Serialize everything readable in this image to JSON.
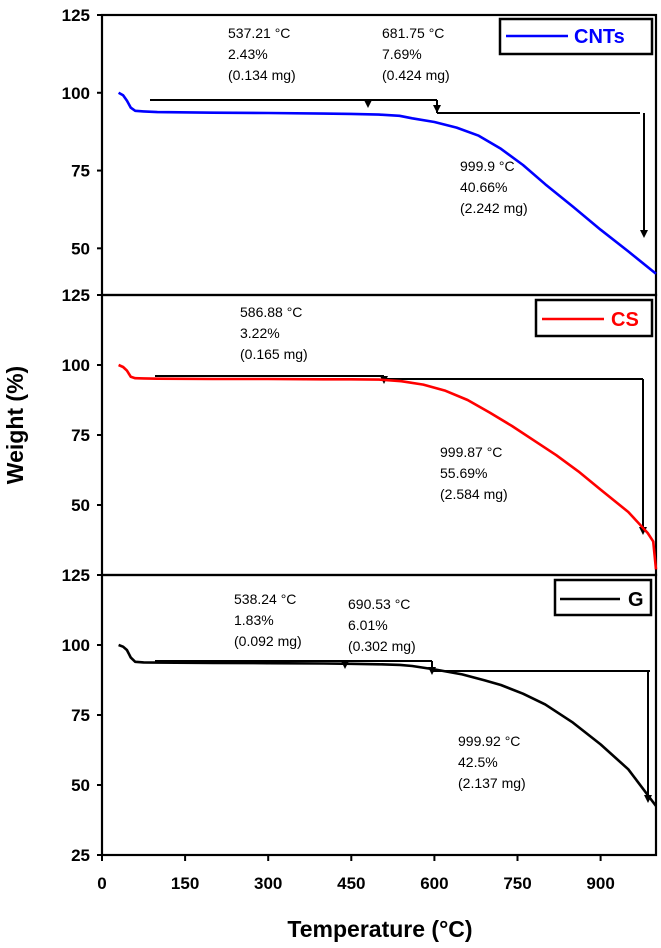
{
  "chart_data": {
    "type": "line",
    "xlabel": "Temperature (°C)",
    "ylabel": "Weight (%)",
    "xlim": [
      0,
      1000
    ],
    "xticks": [
      "0",
      "150",
      "300",
      "450",
      "600",
      "750",
      "900"
    ],
    "xtick_values": [
      0,
      150,
      300,
      450,
      600,
      750,
      900
    ],
    "panels": [
      {
        "series_name": "CNTs",
        "color": "#0000ff",
        "ylim": [
          35,
          125
        ],
        "yticks": [
          "125",
          "100",
          "75",
          "50"
        ],
        "ytick_values": [
          125,
          100,
          75,
          50
        ],
        "x": [
          30,
          38,
          45,
          52,
          60,
          75,
          100,
          200,
          300,
          400,
          450,
          500,
          537,
          560,
          600,
          640,
          680,
          720,
          760,
          800,
          850,
          900,
          950,
          1000
        ],
        "y": [
          100,
          99.2,
          97.5,
          95.2,
          94.2,
          94,
          93.8,
          93.6,
          93.5,
          93.3,
          93.2,
          93,
          92.6,
          91.8,
          90.6,
          88.8,
          86.2,
          82,
          76.8,
          70.6,
          63.4,
          56,
          49,
          41.8
        ],
        "annotations": [
          {
            "lines": [
              "537.21 °C",
              "2.43%",
              "(0.134 mg)"
            ],
            "x": 537.21
          },
          {
            "lines": [
              "681.75 °C",
              "7.69%",
              "(0.424 mg)"
            ],
            "x": 681.75
          },
          {
            "lines": [
              "999.9 °C",
              "40.66%",
              "(2.242 mg)"
            ],
            "x": 999.9
          }
        ]
      },
      {
        "series_name": "CS",
        "color": "#ff0000",
        "ylim": [
          25,
          125
        ],
        "yticks": [
          "125",
          "100",
          "75",
          "50"
        ],
        "ytick_values": [
          125,
          100,
          75,
          50
        ],
        "x": [
          30,
          38,
          45,
          52,
          60,
          75,
          100,
          200,
          300,
          400,
          450,
          500,
          540,
          580,
          620,
          660,
          700,
          740,
          780,
          820,
          860,
          900,
          950,
          985,
          995,
          1000
        ],
        "y": [
          100,
          99.3,
          98,
          95.8,
          95.3,
          95.2,
          95.1,
          95,
          95,
          94.9,
          94.9,
          94.8,
          94.2,
          93,
          90.8,
          87.5,
          83,
          78.2,
          73,
          67.8,
          62,
          55.5,
          47.5,
          40,
          37,
          27
        ],
        "annotations": [
          {
            "lines": [
              "586.88 °C",
              "3.22%",
              "(0.165 mg)"
            ],
            "x": 586.88
          },
          {
            "lines": [
              "999.87 °C",
              "55.69%",
              "(2.584 mg)"
            ],
            "x": 999.87
          }
        ]
      },
      {
        "series_name": "G",
        "color": "#000000",
        "ylim": [
          25,
          125
        ],
        "yticks": [
          "125",
          "100",
          "75",
          "50",
          "25"
        ],
        "ytick_values": [
          125,
          100,
          75,
          50,
          25
        ],
        "x": [
          30,
          38,
          45,
          52,
          60,
          75,
          100,
          200,
          300,
          400,
          450,
          500,
          538,
          560,
          600,
          650,
          690,
          720,
          760,
          800,
          850,
          900,
          950,
          1000
        ],
        "y": [
          100,
          99.4,
          98.2,
          95.5,
          94,
          93.8,
          93.7,
          93.6,
          93.5,
          93.4,
          93.3,
          93.1,
          92.9,
          92.5,
          91.3,
          89.5,
          87.4,
          85.7,
          82.6,
          78.8,
          72.3,
          64.5,
          55.6,
          42.5
        ],
        "annotations": [
          {
            "lines": [
              "538.24 °C",
              "1.83%",
              "(0.092 mg)"
            ],
            "x": 538.24
          },
          {
            "lines": [
              "690.53 °C",
              "6.01%",
              "(0.302 mg)"
            ],
            "x": 690.53
          },
          {
            "lines": [
              "999.92 °C",
              "42.5%",
              "(2.137 mg)"
            ],
            "x": 999.92
          }
        ]
      }
    ]
  }
}
